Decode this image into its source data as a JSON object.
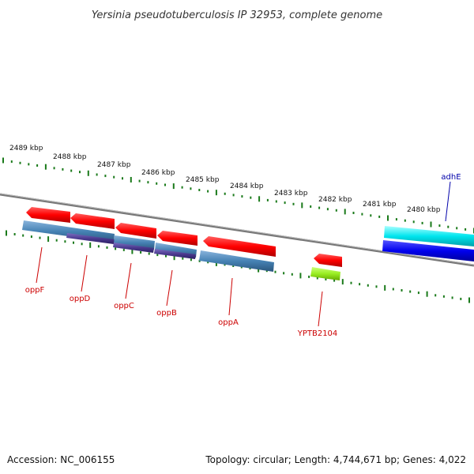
{
  "title": "Yersinia pseudotuberculosis IP 32953, complete genome",
  "footer": {
    "accession": "Accession: NC_006155",
    "summary": "Topology: circular; Length: 4,744,671 bp; Genes: 4,022"
  },
  "ruler": {
    "labels": [
      "2489 kbp",
      "2488 kbp",
      "2487 kbp",
      "2486 kbp",
      "2485 kbp",
      "2484 kbp",
      "2483 kbp",
      "2482 kbp",
      "2481 kbp",
      "2480 kbp"
    ]
  },
  "genes": [
    {
      "name": "oppF"
    },
    {
      "name": "oppD"
    },
    {
      "name": "oppC"
    },
    {
      "name": "oppB"
    },
    {
      "name": "oppA"
    },
    {
      "name": "YPTB2104"
    },
    {
      "name": "adhE"
    }
  ],
  "colors": {
    "cds_red": "#ff0000",
    "steelblue": "#4682b4",
    "purple": "#4b3a8f",
    "lime": "#99ee22",
    "cyan": "#00e5ee",
    "blue": "#0000ee",
    "tick_green": "#1a7a1a",
    "backbone": "#777777",
    "label_red": "#cc0000",
    "label_blue": "#0000aa"
  }
}
